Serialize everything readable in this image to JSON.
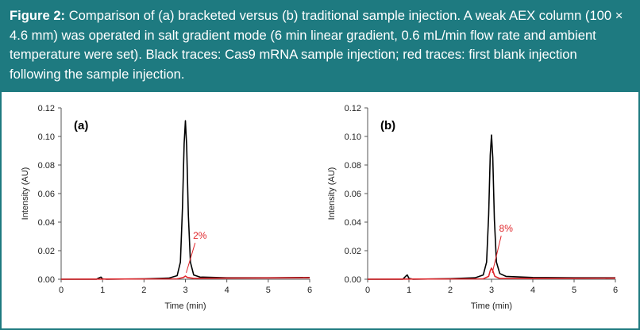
{
  "figure": {
    "caption_label": "Figure 2:",
    "caption_text": " Comparison of (a) bracketed versus (b) traditional sample injection. A weak AEX column (100 × 4.6 mm) was operated in salt gradient mode (6 min linear gradient, 0.6 mL/min flow rate and ambient temperature were set). Black traces: Cas9 mRNA sample injection; red traces: first blank injection following the sample injection.",
    "colors": {
      "header_bg": "#1e7a80",
      "sample_trace": "#000000",
      "blank_trace": "#e0262b",
      "axis": "#555555"
    }
  },
  "chart_data": [
    {
      "type": "line",
      "panel_label": "(a)",
      "xlabel": "Time (min)",
      "ylabel": "Intensity (AU)",
      "xlim": [
        0,
        6
      ],
      "ylim": [
        0,
        0.12
      ],
      "xticks": [
        0,
        1,
        2,
        3,
        4,
        5,
        6
      ],
      "yticks": [
        0.0,
        0.02,
        0.04,
        0.06,
        0.08,
        0.1,
        0.12
      ],
      "ytick_labels": [
        "0.00",
        "0.02",
        "0.04",
        "0.06",
        "0.08",
        "0.10",
        "0.12"
      ],
      "annotation": {
        "text": "2%",
        "x": 3.35,
        "y": 0.026
      },
      "series": [
        {
          "name": "Cas9 mRNA sample injection",
          "color": "#000000",
          "x": [
            0,
            0.85,
            0.92,
            0.96,
            1.0,
            1.1,
            2.0,
            2.6,
            2.8,
            2.88,
            2.93,
            2.97,
            3.0,
            3.03,
            3.07,
            3.12,
            3.2,
            3.35,
            4.0,
            5.0,
            6.0
          ],
          "y": [
            0,
            0,
            0.001,
            0.0015,
            0.0003,
            0,
            0.0003,
            0.0008,
            0.0025,
            0.012,
            0.05,
            0.095,
            0.111,
            0.093,
            0.045,
            0.012,
            0.003,
            0.0015,
            0.001,
            0.001,
            0.0012
          ]
        },
        {
          "name": "First blank injection",
          "color": "#e0262b",
          "x": [
            0,
            2.8,
            2.95,
            3.0,
            3.05,
            3.2,
            4.0,
            6.0
          ],
          "y": [
            0,
            0.0003,
            0.0012,
            0.0022,
            0.0012,
            0.0006,
            0.0008,
            0.001
          ]
        }
      ]
    },
    {
      "type": "line",
      "panel_label": "(b)",
      "xlabel": "Time (min)",
      "ylabel": "Intensity (AU)",
      "xlim": [
        0,
        6
      ],
      "ylim": [
        0,
        0.12
      ],
      "xticks": [
        0,
        1,
        2,
        3,
        4,
        5,
        6
      ],
      "yticks": [
        0.0,
        0.02,
        0.04,
        0.06,
        0.08,
        0.1,
        0.12
      ],
      "ytick_labels": [
        "0.00",
        "0.02",
        "0.04",
        "0.06",
        "0.08",
        "0.10",
        "0.12"
      ],
      "annotation": {
        "text": "8%",
        "x": 3.35,
        "y": 0.031
      },
      "series": [
        {
          "name": "Cas9 mRNA sample injection",
          "color": "#000000",
          "x": [
            0,
            0.85,
            0.92,
            0.96,
            1.0,
            1.1,
            2.0,
            2.6,
            2.8,
            2.88,
            2.93,
            2.97,
            3.0,
            3.03,
            3.07,
            3.12,
            3.2,
            3.35,
            4.0,
            5.0,
            6.0
          ],
          "y": [
            0,
            0,
            0.002,
            0.003,
            0.0006,
            0,
            0.0004,
            0.001,
            0.003,
            0.012,
            0.045,
            0.087,
            0.101,
            0.085,
            0.042,
            0.012,
            0.004,
            0.002,
            0.0012,
            0.001,
            0.001
          ]
        },
        {
          "name": "First blank injection",
          "color": "#e0262b",
          "x": [
            0,
            2.8,
            2.93,
            2.97,
            3.0,
            3.03,
            3.08,
            3.2,
            4.0,
            6.0
          ],
          "y": [
            0,
            0.0003,
            0.002,
            0.006,
            0.0078,
            0.006,
            0.002,
            0.0005,
            0.0006,
            0.0008
          ]
        }
      ]
    }
  ]
}
